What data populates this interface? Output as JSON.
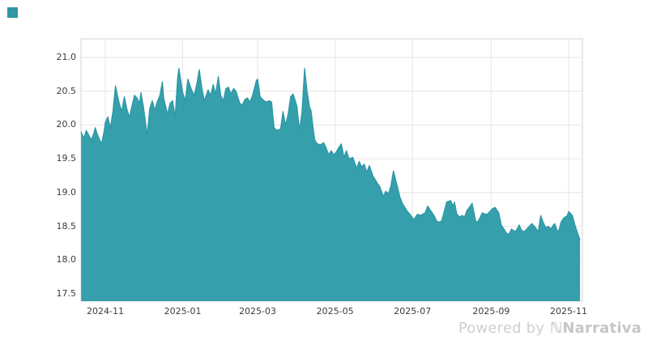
{
  "corner_square_color": "#2f96a5",
  "watermark": {
    "powered_by": "Powered by",
    "logo_glyph": "ℕ",
    "brand": "Narrativa"
  },
  "chart_data": {
    "type": "area",
    "title": "",
    "xlabel": "",
    "ylabel": "",
    "grid": true,
    "legend": "none",
    "ylim": [
      17.39,
      21.28
    ],
    "xlim": [
      "2024-10-13",
      "2025-11-11"
    ],
    "colors": {
      "fill": "#35a0ab",
      "line": "#2d97a4",
      "gridline": "#e6e6e6",
      "border": "#d4d4d4",
      "tick_text": "#3b3b3b"
    },
    "y_axis": {
      "ticks": [
        21.0,
        20.5,
        20.0,
        19.5,
        19.0,
        18.5,
        18.0,
        17.5
      ],
      "labels": [
        "21.0",
        "20.5",
        "20.0",
        "19.5",
        "19.0",
        "18.5",
        "18.0",
        "17.5"
      ]
    },
    "x_axis": {
      "tick_dates": [
        "2024-11-01",
        "2025-01-01",
        "2025-03-01",
        "2025-05-01",
        "2025-07-01",
        "2025-09-01",
        "2025-11-01"
      ],
      "labels": [
        "2024-11",
        "2025-01",
        "2025-03",
        "2025-05",
        "2025-07",
        "2025-09",
        "2025-11"
      ]
    },
    "series": [
      {
        "points": [
          [
            "2024-10-13",
            19.9
          ],
          [
            "2024-10-15",
            19.8
          ],
          [
            "2024-10-17",
            19.92
          ],
          [
            "2024-10-19",
            19.85
          ],
          [
            "2024-10-21",
            19.78
          ],
          [
            "2024-10-23",
            19.88
          ],
          [
            "2024-10-24",
            19.96
          ],
          [
            "2024-10-26",
            19.85
          ],
          [
            "2024-10-29",
            19.72
          ],
          [
            "2024-10-31",
            19.9
          ],
          [
            "2024-11-01",
            20.04
          ],
          [
            "2024-11-03",
            20.12
          ],
          [
            "2024-11-05",
            19.96
          ],
          [
            "2024-11-07",
            20.2
          ],
          [
            "2024-11-09",
            20.58
          ],
          [
            "2024-11-12",
            20.32
          ],
          [
            "2024-11-14",
            20.2
          ],
          [
            "2024-11-16",
            20.42
          ],
          [
            "2024-11-18",
            20.24
          ],
          [
            "2024-11-20",
            20.12
          ],
          [
            "2024-11-22",
            20.28
          ],
          [
            "2024-11-24",
            20.44
          ],
          [
            "2024-11-26",
            20.4
          ],
          [
            "2024-11-28",
            20.32
          ],
          [
            "2024-11-29",
            20.48
          ],
          [
            "2024-12-01",
            20.28
          ],
          [
            "2024-12-04",
            19.85
          ],
          [
            "2024-12-06",
            20.24
          ],
          [
            "2024-12-08",
            20.36
          ],
          [
            "2024-12-10",
            20.22
          ],
          [
            "2024-12-12",
            20.35
          ],
          [
            "2024-12-14",
            20.44
          ],
          [
            "2024-12-16",
            20.64
          ],
          [
            "2024-12-17",
            20.4
          ],
          [
            "2024-12-20",
            20.16
          ],
          [
            "2024-12-22",
            20.32
          ],
          [
            "2024-12-24",
            20.36
          ],
          [
            "2024-12-26",
            20.12
          ],
          [
            "2024-12-28",
            20.7
          ],
          [
            "2024-12-29",
            20.84
          ],
          [
            "2024-12-31",
            20.6
          ],
          [
            "2025-01-01",
            20.48
          ],
          [
            "2025-01-03",
            20.36
          ],
          [
            "2025-01-05",
            20.68
          ],
          [
            "2025-01-08",
            20.52
          ],
          [
            "2025-01-10",
            20.44
          ],
          [
            "2025-01-12",
            20.6
          ],
          [
            "2025-01-14",
            20.82
          ],
          [
            "2025-01-16",
            20.56
          ],
          [
            "2025-01-18",
            20.36
          ],
          [
            "2025-01-21",
            20.52
          ],
          [
            "2025-01-23",
            20.44
          ],
          [
            "2025-01-25",
            20.6
          ],
          [
            "2025-01-27",
            20.46
          ],
          [
            "2025-01-29",
            20.72
          ],
          [
            "2025-01-31",
            20.44
          ],
          [
            "2025-02-02",
            20.36
          ],
          [
            "2025-02-04",
            20.54
          ],
          [
            "2025-02-06",
            20.56
          ],
          [
            "2025-02-08",
            20.46
          ],
          [
            "2025-02-10",
            20.54
          ],
          [
            "2025-02-12",
            20.5
          ],
          [
            "2025-02-15",
            20.32
          ],
          [
            "2025-02-17",
            20.3
          ],
          [
            "2025-02-19",
            20.38
          ],
          [
            "2025-02-21",
            20.4
          ],
          [
            "2025-02-23",
            20.34
          ],
          [
            "2025-02-25",
            20.44
          ],
          [
            "2025-02-28",
            20.66
          ],
          [
            "2025-03-01",
            20.68
          ],
          [
            "2025-03-03",
            20.42
          ],
          [
            "2025-03-06",
            20.36
          ],
          [
            "2025-03-08",
            20.34
          ],
          [
            "2025-03-10",
            20.36
          ],
          [
            "2025-03-12",
            20.34
          ],
          [
            "2025-03-14",
            19.96
          ],
          [
            "2025-03-16",
            19.92
          ],
          [
            "2025-03-19",
            19.94
          ],
          [
            "2025-03-21",
            20.2
          ],
          [
            "2025-03-23",
            20.0
          ],
          [
            "2025-03-25",
            20.16
          ],
          [
            "2025-03-27",
            20.42
          ],
          [
            "2025-03-29",
            20.46
          ],
          [
            "2025-04-01",
            20.28
          ],
          [
            "2025-04-03",
            19.92
          ],
          [
            "2025-04-05",
            20.2
          ],
          [
            "2025-04-07",
            20.84
          ],
          [
            "2025-04-09",
            20.49
          ],
          [
            "2025-04-11",
            20.26
          ],
          [
            "2025-04-12",
            20.22
          ],
          [
            "2025-04-14",
            19.92
          ],
          [
            "2025-04-15",
            19.78
          ],
          [
            "2025-04-17",
            19.72
          ],
          [
            "2025-04-20",
            19.71
          ],
          [
            "2025-04-22",
            19.74
          ],
          [
            "2025-04-24",
            19.66
          ],
          [
            "2025-04-26",
            19.56
          ],
          [
            "2025-04-28",
            19.62
          ],
          [
            "2025-04-30",
            19.56
          ],
          [
            "2025-05-02",
            19.6
          ],
          [
            "2025-05-04",
            19.67
          ],
          [
            "2025-05-06",
            19.72
          ],
          [
            "2025-05-08",
            19.52
          ],
          [
            "2025-05-10",
            19.62
          ],
          [
            "2025-05-12",
            19.5
          ],
          [
            "2025-05-15",
            19.52
          ],
          [
            "2025-05-18",
            19.36
          ],
          [
            "2025-05-20",
            19.46
          ],
          [
            "2025-05-22",
            19.38
          ],
          [
            "2025-05-24",
            19.42
          ],
          [
            "2025-05-26",
            19.3
          ],
          [
            "2025-05-28",
            19.4
          ],
          [
            "2025-05-31",
            19.24
          ],
          [
            "2025-06-02",
            19.18
          ],
          [
            "2025-06-04",
            19.12
          ],
          [
            "2025-06-05",
            19.1
          ],
          [
            "2025-06-07",
            19.0
          ],
          [
            "2025-06-08",
            18.94
          ],
          [
            "2025-06-10",
            19.02
          ],
          [
            "2025-06-12",
            18.98
          ],
          [
            "2025-06-14",
            19.1
          ],
          [
            "2025-06-16",
            19.32
          ],
          [
            "2025-06-19",
            19.1
          ],
          [
            "2025-06-21",
            18.94
          ],
          [
            "2025-06-23",
            18.84
          ],
          [
            "2025-06-25",
            18.78
          ],
          [
            "2025-06-27",
            18.72
          ],
          [
            "2025-06-29",
            18.68
          ],
          [
            "2025-07-02",
            18.6
          ],
          [
            "2025-07-05",
            18.68
          ],
          [
            "2025-07-07",
            18.66
          ],
          [
            "2025-07-09",
            18.68
          ],
          [
            "2025-07-11",
            18.7
          ],
          [
            "2025-07-13",
            18.8
          ],
          [
            "2025-07-15",
            18.74
          ],
          [
            "2025-07-18",
            18.66
          ],
          [
            "2025-07-20",
            18.58
          ],
          [
            "2025-07-22",
            18.56
          ],
          [
            "2025-07-24",
            18.58
          ],
          [
            "2025-07-26",
            18.72
          ],
          [
            "2025-07-28",
            18.86
          ],
          [
            "2025-07-31",
            18.88
          ],
          [
            "2025-08-02",
            18.8
          ],
          [
            "2025-08-03",
            18.86
          ],
          [
            "2025-08-05",
            18.68
          ],
          [
            "2025-08-07",
            18.64
          ],
          [
            "2025-08-09",
            18.66
          ],
          [
            "2025-08-11",
            18.64
          ],
          [
            "2025-08-13",
            18.74
          ],
          [
            "2025-08-14",
            18.76
          ],
          [
            "2025-08-17",
            18.84
          ],
          [
            "2025-08-20",
            18.56
          ],
          [
            "2025-08-22",
            18.58
          ],
          [
            "2025-08-25",
            18.7
          ],
          [
            "2025-08-27",
            18.68
          ],
          [
            "2025-08-29",
            18.68
          ],
          [
            "2025-08-31",
            18.72
          ],
          [
            "2025-09-02",
            18.76
          ],
          [
            "2025-09-04",
            18.78
          ],
          [
            "2025-09-07",
            18.7
          ],
          [
            "2025-09-09",
            18.52
          ],
          [
            "2025-09-11",
            18.46
          ],
          [
            "2025-09-13",
            18.4
          ],
          [
            "2025-09-15",
            18.38
          ],
          [
            "2025-09-17",
            18.46
          ],
          [
            "2025-09-20",
            18.42
          ],
          [
            "2025-09-22",
            18.48
          ],
          [
            "2025-09-23",
            18.52
          ],
          [
            "2025-09-25",
            18.44
          ],
          [
            "2025-09-27",
            18.42
          ],
          [
            "2025-09-29",
            18.46
          ],
          [
            "2025-10-01",
            18.5
          ],
          [
            "2025-10-03",
            18.54
          ],
          [
            "2025-10-06",
            18.48
          ],
          [
            "2025-10-08",
            18.42
          ],
          [
            "2025-10-10",
            18.66
          ],
          [
            "2025-10-12",
            18.56
          ],
          [
            "2025-10-14",
            18.48
          ],
          [
            "2025-10-16",
            18.5
          ],
          [
            "2025-10-18",
            18.46
          ],
          [
            "2025-10-20",
            18.52
          ],
          [
            "2025-10-21",
            18.54
          ],
          [
            "2025-10-23",
            18.44
          ],
          [
            "2025-10-24",
            18.42
          ],
          [
            "2025-10-26",
            18.56
          ],
          [
            "2025-10-28",
            18.62
          ],
          [
            "2025-10-31",
            18.66
          ],
          [
            "2025-11-01",
            18.72
          ],
          [
            "2025-11-03",
            18.68
          ],
          [
            "2025-11-04",
            18.66
          ],
          [
            "2025-11-06",
            18.52
          ],
          [
            "2025-11-08",
            18.4
          ],
          [
            "2025-11-10",
            18.3
          ]
        ]
      }
    ]
  }
}
